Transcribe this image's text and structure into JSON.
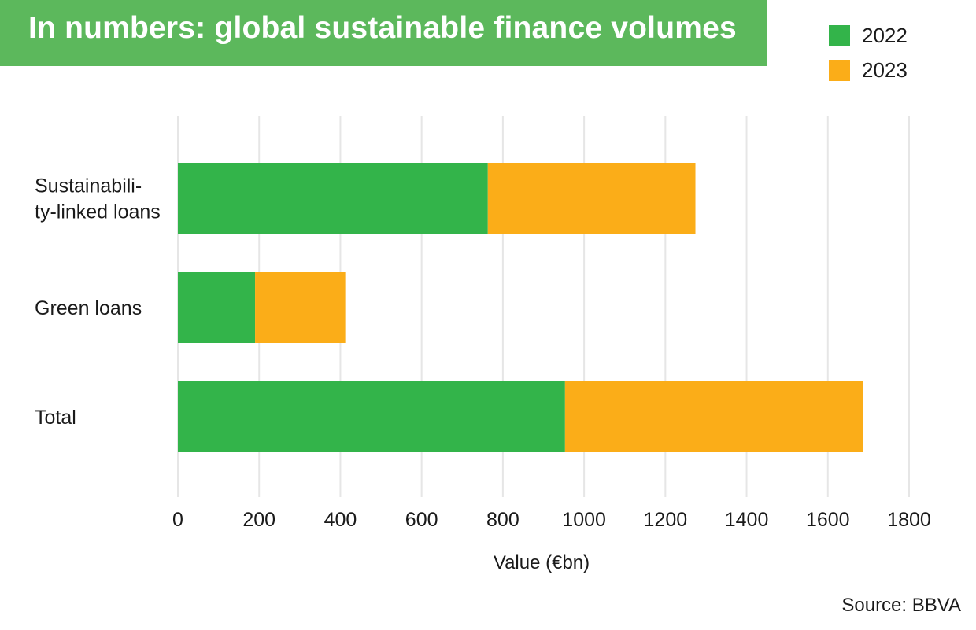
{
  "chart_data": {
    "type": "bar",
    "orientation": "horizontal",
    "stacked": true,
    "title": "In numbers: global sustainable finance volumes",
    "categories": [
      "Sustainabili-\nty-linked loans",
      "Green loans",
      "Total"
    ],
    "series": [
      {
        "name": "2022",
        "color": "#33b44a",
        "values": [
          763,
          190,
          953
        ]
      },
      {
        "name": "2023",
        "color": "#fbad18",
        "values": [
          511,
          222,
          733
        ]
      }
    ],
    "xlabel": "Value (€bn)",
    "ylabel": "",
    "xlim": [
      0,
      1800
    ],
    "xticks": [
      0,
      200,
      400,
      600,
      800,
      1000,
      1200,
      1400,
      1600,
      1800
    ],
    "grid": true,
    "legend_position": "top-right"
  },
  "source": "Source: BBVA"
}
